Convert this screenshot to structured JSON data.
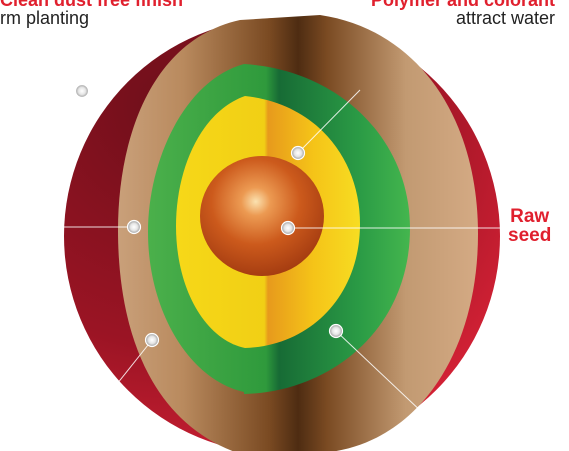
{
  "colors": {
    "accent": "#e0202e",
    "text": "#222222"
  },
  "labels": {
    "top_left": {
      "heading": "Clean dust free finish",
      "subtext": "rm planting"
    },
    "top_right": {
      "heading": "Polymer and colorant",
      "subtext": "attract water"
    },
    "raw_seed": {
      "line1": "Raw",
      "line2": "seed"
    }
  }
}
